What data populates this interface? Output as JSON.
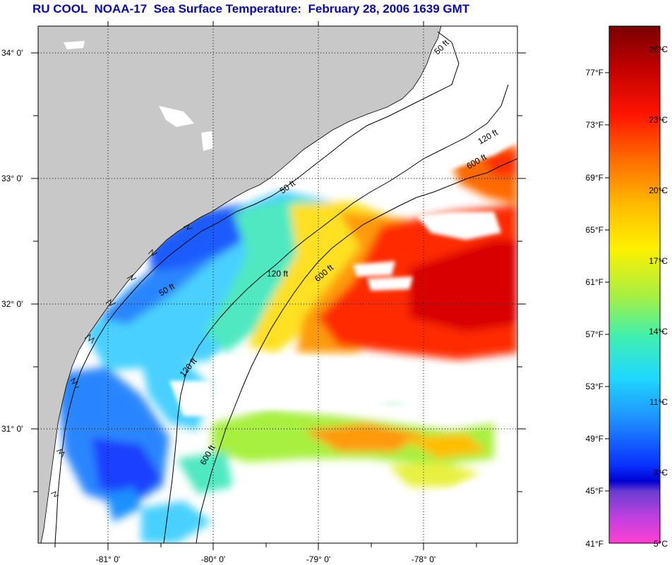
{
  "title": "RU COOL  NOAA-17  Sea Surface Temperature:  February 28, 2006 1639 GMT",
  "map": {
    "lat_labels": [
      "34° 0'",
      "33° 0'",
      "32° 0'",
      "31° 0'"
    ],
    "lon_labels": [
      "-81° 0'",
      "-80° 0'",
      "-79° 0'",
      "-78° 0'"
    ],
    "isobath_labels": [
      "50 ft",
      "50 ft",
      "120 ft",
      "120 ft",
      "600 ft",
      "600 ft",
      "600 ft",
      "50 ft",
      "120 ft"
    ]
  },
  "scale": {
    "fahrenheit": [
      "77°F",
      "73°F",
      "69°F",
      "65°F",
      "61°F",
      "57°F",
      "53°F",
      "49°F",
      "45°F",
      "41°F"
    ],
    "celsius": [
      "26°C",
      "23°C",
      "20°C",
      "17°C",
      "14°C",
      "11°C",
      "8°C",
      "5°C"
    ]
  },
  "colors": {
    "land": "#c8c8c8",
    "cloud": "#ffffff",
    "title": "#0a0aa8"
  }
}
